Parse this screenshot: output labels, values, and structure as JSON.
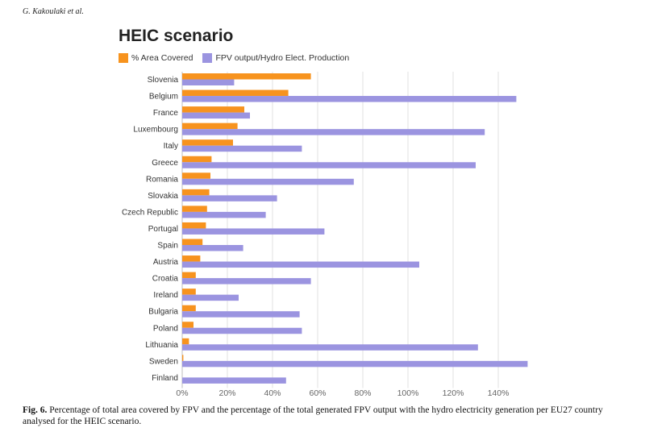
{
  "running_head": "G. Kakoulaki et al.",
  "caption": {
    "label": "Fig. 6.",
    "text": "Percentage of total area covered by FPV and the percentage of the total generated FPV output with the hydro electricity generation per EU27 country analysed for the HEIC scenario."
  },
  "colors": {
    "area": "#f7931e",
    "output": "#9b94e0",
    "grid": "#e2e2e2",
    "axis_text": "#666666",
    "label_text": "#333333"
  },
  "chart_data": {
    "type": "bar",
    "orientation": "horizontal",
    "title": "HEIC scenario",
    "categories": [
      "Slovenia",
      "Belgium",
      "France",
      "Luxembourg",
      "Italy",
      "Greece",
      "Romania",
      "Slovakia",
      "Czech Republic",
      "Portugal",
      "Spain",
      "Austria",
      "Croatia",
      "Ireland",
      "Bulgaria",
      "Poland",
      "Lithuania",
      "Sweden",
      "Finland"
    ],
    "series": [
      {
        "name": "% Area Covered",
        "values": [
          57,
          47,
          27.5,
          24.5,
          22.5,
          13,
          12.5,
          12,
          11,
          10.5,
          9,
          8,
          6,
          6,
          6,
          5,
          3,
          0.5,
          0
        ]
      },
      {
        "name": "FPV output/Hydro Elect. Production",
        "values": [
          23,
          148,
          30,
          134,
          53,
          130,
          76,
          42,
          37,
          63,
          27,
          105,
          57,
          25,
          52,
          53,
          131,
          153,
          46
        ]
      }
    ],
    "xlim": [
      0,
      160
    ],
    "xticks": [
      "0%",
      "20%",
      "40%",
      "60%",
      "80%",
      "100%",
      "120%",
      "140%"
    ],
    "grid": true,
    "legend": "top-left"
  }
}
